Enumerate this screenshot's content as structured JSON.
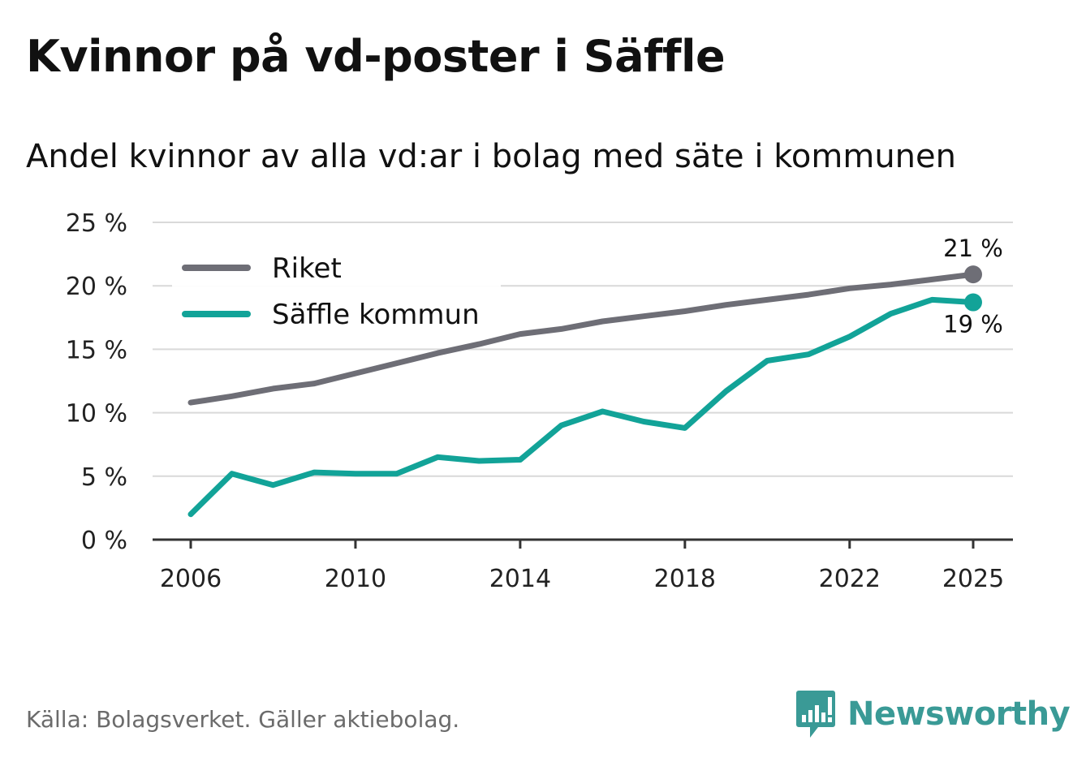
{
  "title": "Kvinnor på vd-poster i Säffle",
  "subtitle": "Andel kvinnor av alla vd:ar i bolag med säte i kommunen",
  "source": "Källa: Bolagsverket. Gäller aktiebolag.",
  "brand": {
    "name": "Newsworthy",
    "icon": "newsworthy-logo-icon",
    "color": "#3a9a96"
  },
  "chart_data": {
    "type": "line",
    "title": "Kvinnor på vd-poster i Säffle",
    "subtitle": "Andel kvinnor av alla vd:ar i bolag med säte i kommunen",
    "xlabel": "",
    "ylabel": "",
    "x": [
      2006,
      2007,
      2008,
      2009,
      2010,
      2011,
      2012,
      2013,
      2014,
      2015,
      2016,
      2017,
      2018,
      2019,
      2020,
      2021,
      2022,
      2023,
      2024,
      2025
    ],
    "xlim": [
      2006,
      2025
    ],
    "x_ticks": [
      2006,
      2010,
      2014,
      2018,
      2022,
      2025
    ],
    "ylim": [
      0,
      25
    ],
    "y_ticks": [
      0,
      5,
      10,
      15,
      20,
      25
    ],
    "y_tick_labels": [
      "0 %",
      "5 %",
      "10 %",
      "15 %",
      "20 %",
      "25 %"
    ],
    "grid": true,
    "legend_position": "top-left",
    "series": [
      {
        "name": "Riket",
        "color": "#6e6e76",
        "values": [
          10.8,
          11.3,
          11.9,
          12.3,
          13.1,
          13.9,
          14.7,
          15.4,
          16.2,
          16.6,
          17.2,
          17.6,
          18.0,
          18.5,
          18.9,
          19.3,
          19.8,
          20.1,
          20.5,
          20.9
        ],
        "end_label": "21 %"
      },
      {
        "name": "Säffle kommun",
        "color": "#12a398",
        "values": [
          2.0,
          5.2,
          4.3,
          5.3,
          5.2,
          5.2,
          6.5,
          6.2,
          6.3,
          9.0,
          10.1,
          9.3,
          8.8,
          11.7,
          14.1,
          14.6,
          16.0,
          17.8,
          18.9,
          18.7
        ],
        "end_label": "19 %"
      }
    ]
  }
}
